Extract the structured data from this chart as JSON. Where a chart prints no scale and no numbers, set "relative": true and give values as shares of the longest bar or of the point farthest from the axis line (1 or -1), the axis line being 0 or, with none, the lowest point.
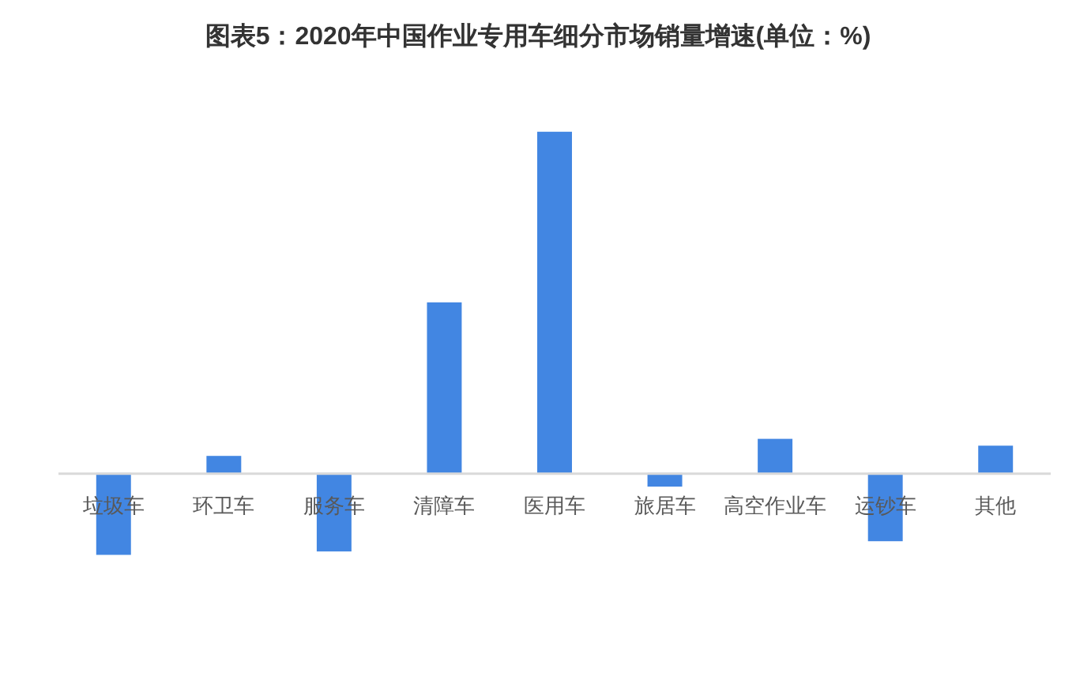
{
  "chart_data": {
    "type": "bar",
    "title": "图表5：2020年中国作业专用车细分市场销量增速(单位：%)",
    "categories": [
      "垃圾车",
      "环卫车",
      "服务车",
      "清障车",
      "医用车",
      "旅居车",
      "高空作业车",
      "运钞车",
      "其他"
    ],
    "values": [
      -0.24,
      0.05,
      -0.23,
      0.5,
      1,
      -0.04,
      0.1,
      -0.2,
      0.08
    ],
    "color": "#4286e2",
    "relative": true
  }
}
